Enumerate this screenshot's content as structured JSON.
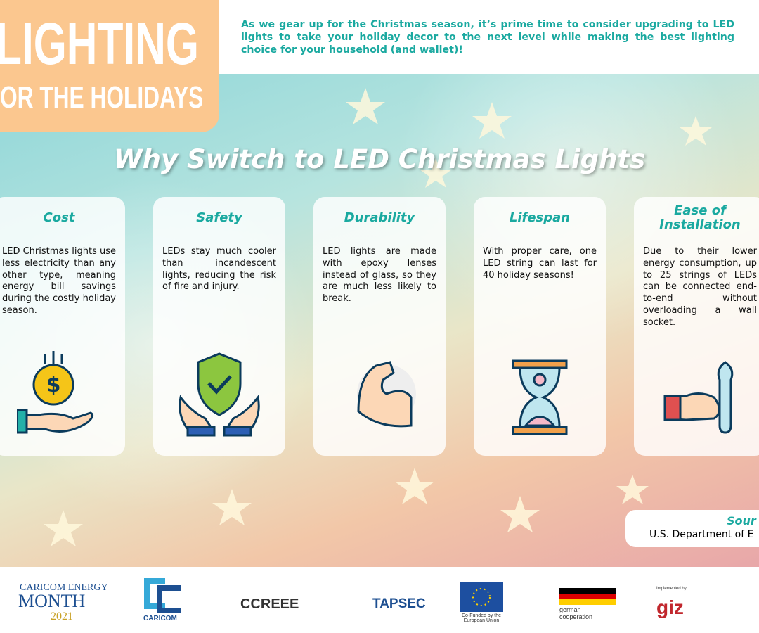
{
  "header": {
    "title_main": "LIGHTING",
    "title_sub": "OR THE HOLIDAYS",
    "intro": "As we gear up for the Christmas season, it’s prime time to consider upgrading to LED lights to take your holiday decor to the next level while making the best lighting choice for your household (and wallet)!"
  },
  "heading": "Why Switch to LED Christmas Lights",
  "cards": [
    {
      "title": "Cost",
      "body": "LED Christmas lights use less electricity than any other type, meaning energy bill savings during the costly holiday season."
    },
    {
      "title": "Safety",
      "body": "LEDs stay much cooler than incandescent lights, reducing the risk of fire and injury."
    },
    {
      "title": "Durability",
      "body": "LED lights are made with epoxy lenses instead of glass, so they are much less likely to break."
    },
    {
      "title": "Lifespan",
      "body": "With proper care, one LED string can last for 40 holiday seasons!"
    },
    {
      "title": "Ease of Installation",
      "body": "Due to their lower energy consumption, up to 25 strings of LEDs can be connected end-to-end without overloading a wall socket."
    }
  ],
  "source": {
    "label": "Sour",
    "text": "U.S. Department of E"
  },
  "footer": {
    "logos": [
      "CARICOM ENERGY",
      "MONTH",
      "2021",
      "CARICOM",
      "CCREEE",
      "TAPSEC",
      "Co-Funded by the European Union",
      "german cooperation",
      "Implemented by",
      "giz"
    ]
  }
}
